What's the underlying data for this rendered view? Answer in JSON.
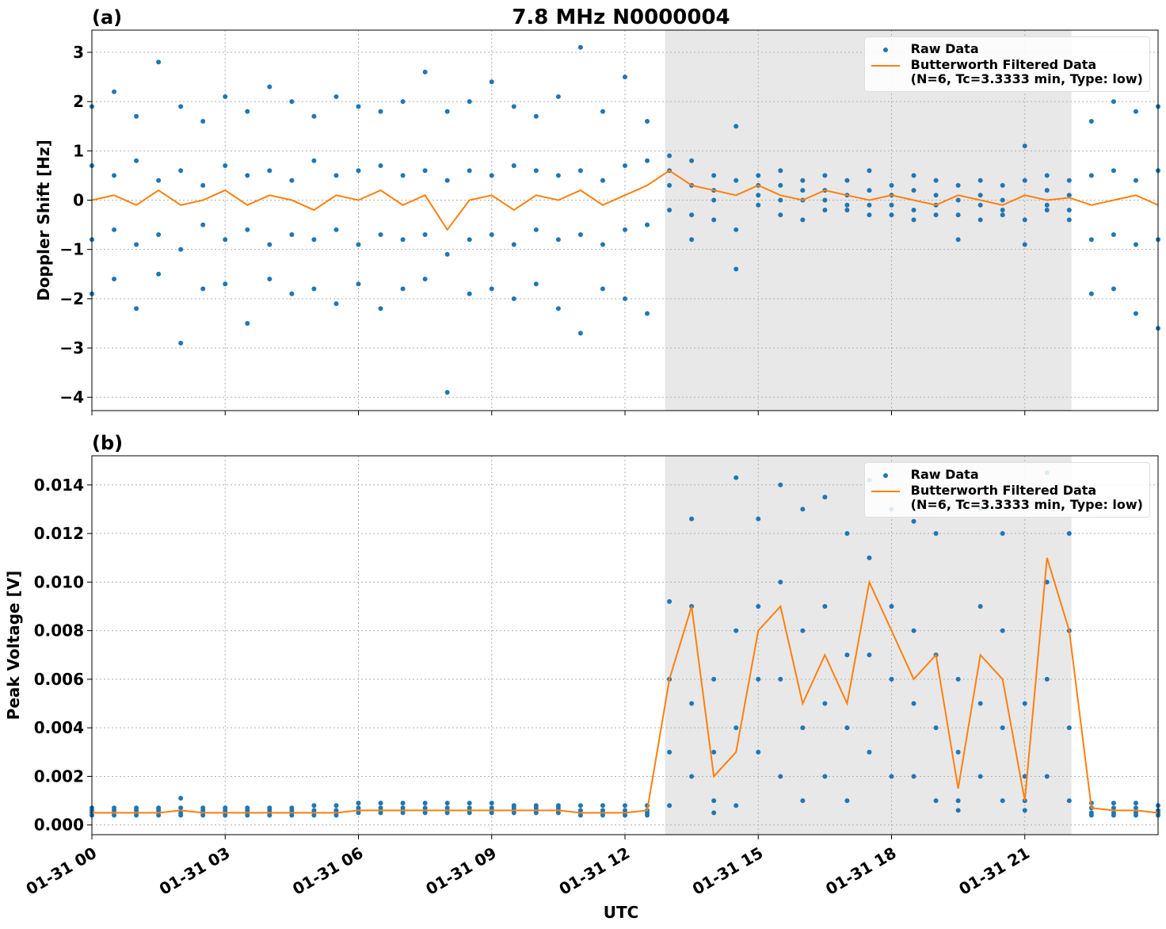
{
  "chart_data": [
    {
      "type": "scatter-line",
      "title": "7.8 MHz N0000004",
      "panel_label": "(a)",
      "ylabel": "Doppler Shift [Hz]",
      "xlim": [
        0,
        24
      ],
      "xticks": [
        0,
        3,
        6,
        9,
        12,
        15,
        18,
        21
      ],
      "ylim": [
        -4.27,
        3.45
      ],
      "yticks": [
        {
          "value": -4,
          "label": "−4"
        },
        {
          "value": -3,
          "label": "−3"
        },
        {
          "value": -2,
          "label": "−2"
        },
        {
          "value": -1,
          "label": "−1"
        },
        0,
        1,
        2,
        3
      ],
      "grid": true,
      "legend": "upper right",
      "shade": [
        12.9,
        22.05
      ],
      "shade_color": "#e8e8e8",
      "x": [
        0,
        0.5,
        1,
        1.5,
        2,
        2.5,
        3,
        3.5,
        4,
        4.5,
        5,
        5.5,
        6,
        6.5,
        7,
        7.5,
        8,
        8.5,
        9,
        9.5,
        10,
        10.5,
        11,
        11.5,
        12,
        12.5,
        13,
        13.5,
        14,
        14.5,
        15,
        15.5,
        16,
        16.5,
        17,
        17.5,
        18,
        18.5,
        19,
        19.5,
        20,
        20.5,
        21,
        21.5,
        22,
        22.5,
        23,
        23.5,
        24
      ],
      "series": [
        {
          "name": "Raw Data",
          "kind": "scatter",
          "color": "#1f77b4",
          "values": [
            [
              1.9,
              0.7,
              -0.8,
              -1.9
            ],
            [
              2.2,
              0.5,
              -0.6,
              -1.6
            ],
            [
              1.7,
              0.8,
              -0.9,
              -2.2
            ],
            [
              2.8,
              0.4,
              -0.7,
              -1.5
            ],
            [
              1.9,
              0.6,
              -1.0,
              -2.9
            ],
            [
              1.6,
              0.3,
              -0.5,
              -1.8
            ],
            [
              2.1,
              0.7,
              -0.8,
              -1.7
            ],
            [
              1.8,
              0.5,
              -0.6,
              -2.5
            ],
            [
              2.3,
              0.6,
              -0.9,
              -1.6
            ],
            [
              2.0,
              0.4,
              -0.7,
              -1.9
            ],
            [
              1.7,
              0.8,
              -0.8,
              -1.8
            ],
            [
              2.1,
              0.5,
              -0.6,
              -2.1
            ],
            [
              1.9,
              0.6,
              -0.9,
              -1.7
            ],
            [
              1.8,
              0.7,
              -0.7,
              -2.2
            ],
            [
              2.0,
              0.5,
              -0.8,
              -1.8
            ],
            [
              2.6,
              0.6,
              -0.7,
              -1.6
            ],
            [
              1.8,
              0.4,
              -1.1,
              -3.9
            ],
            [
              2.0,
              0.6,
              -0.8,
              -1.9
            ],
            [
              2.4,
              0.5,
              -0.7,
              -1.8
            ],
            [
              1.9,
              0.7,
              -0.9,
              -2.0
            ],
            [
              1.7,
              0.6,
              -0.6,
              -1.7
            ],
            [
              2.1,
              0.5,
              -0.8,
              -2.2
            ],
            [
              3.1,
              0.6,
              -0.7,
              -2.7
            ],
            [
              1.8,
              0.4,
              -0.9,
              -1.8
            ],
            [
              2.5,
              0.7,
              -0.6,
              -2.0
            ],
            [
              1.6,
              0.8,
              -0.5,
              -2.3
            ],
            [
              0.9,
              0.6,
              0.3,
              -0.2
            ],
            [
              0.8,
              0.3,
              -0.3,
              -0.8
            ],
            [
              0.5,
              0.2,
              0.0,
              -0.4
            ],
            [
              1.5,
              0.4,
              -0.6,
              -1.4
            ],
            [
              0.5,
              0.3,
              0.1,
              -0.1
            ],
            [
              0.6,
              0.3,
              0.0,
              -0.3
            ],
            [
              0.4,
              0.2,
              0.0,
              -0.4
            ],
            [
              0.5,
              0.2,
              0.0,
              -0.2
            ],
            [
              0.4,
              0.1,
              -0.1,
              -0.2
            ],
            [
              0.6,
              0.2,
              -0.1,
              -0.3
            ],
            [
              0.3,
              0.1,
              -0.1,
              -0.3
            ],
            [
              0.5,
              0.2,
              -0.2,
              -0.4
            ],
            [
              0.4,
              0.1,
              -0.1,
              -0.3
            ],
            [
              0.3,
              0.0,
              -0.3,
              -0.8
            ],
            [
              0.4,
              0.1,
              -0.1,
              -0.4
            ],
            [
              0.3,
              0.0,
              -0.2,
              -0.3
            ],
            [
              1.1,
              0.4,
              -0.4,
              -0.9
            ],
            [
              0.5,
              0.2,
              -0.1,
              -0.2
            ],
            [
              0.4,
              0.1,
              -0.2,
              -0.4
            ],
            [
              1.6,
              0.5,
              -0.8,
              -1.9
            ],
            [
              2.0,
              0.6,
              -0.7,
              -1.8
            ],
            [
              1.8,
              0.4,
              -0.9,
              -2.3
            ],
            [
              1.9,
              0.6,
              -0.8,
              -2.6
            ]
          ]
        },
        {
          "name": "Butterworth Filtered Data\n(N=6, Tc=3.3333 min, Type: low)",
          "kind": "line",
          "color": "#ff7f0e",
          "values": [
            0.0,
            0.1,
            -0.1,
            0.2,
            -0.1,
            0.0,
            0.2,
            -0.1,
            0.1,
            0.0,
            -0.2,
            0.1,
            0.0,
            0.2,
            -0.1,
            0.1,
            -0.6,
            0.0,
            0.1,
            -0.2,
            0.1,
            0.0,
            0.2,
            -0.1,
            0.1,
            0.3,
            0.6,
            0.3,
            0.2,
            0.1,
            0.3,
            0.1,
            0.0,
            0.2,
            0.1,
            0.0,
            0.1,
            0.0,
            -0.1,
            0.1,
            0.0,
            -0.1,
            0.1,
            0.0,
            0.05,
            -0.1,
            0.0,
            0.1,
            -0.1
          ]
        }
      ]
    },
    {
      "type": "scatter-line",
      "panel_label": "(b)",
      "ylabel": "Peak Voltage [V]",
      "xlabel": "UTC",
      "xlim": [
        0,
        24
      ],
      "xticks": [
        {
          "value": 0,
          "label": "01-31 00"
        },
        {
          "value": 3,
          "label": "01-31 03"
        },
        {
          "value": 6,
          "label": "01-31 06"
        },
        {
          "value": 9,
          "label": "01-31 09"
        },
        {
          "value": 12,
          "label": "01-31 12"
        },
        {
          "value": 15,
          "label": "01-31 15"
        },
        {
          "value": 18,
          "label": "01-31 18"
        },
        {
          "value": 21,
          "label": "01-31 21"
        }
      ],
      "ylim": [
        -0.0004,
        0.0152
      ],
      "yticks": [
        {
          "value": 0,
          "label": "0.000"
        },
        {
          "value": 0.002,
          "label": "0.002"
        },
        {
          "value": 0.004,
          "label": "0.004"
        },
        {
          "value": 0.006,
          "label": "0.006"
        },
        {
          "value": 0.008,
          "label": "0.008"
        },
        {
          "value": 0.01,
          "label": "0.010"
        },
        {
          "value": 0.012,
          "label": "0.012"
        },
        {
          "value": 0.014,
          "label": "0.014"
        }
      ],
      "grid": true,
      "legend": "upper right",
      "shade": [
        12.9,
        22.05
      ],
      "shade_color": "#e8e8e8",
      "x": [
        0,
        0.5,
        1,
        1.5,
        2,
        2.5,
        3,
        3.5,
        4,
        4.5,
        5,
        5.5,
        6,
        6.5,
        7,
        7.5,
        8,
        8.5,
        9,
        9.5,
        10,
        10.5,
        11,
        11.5,
        12,
        12.5,
        13,
        13.5,
        14,
        14.5,
        15,
        15.5,
        16,
        16.5,
        17,
        17.5,
        18,
        18.5,
        19,
        19.5,
        20,
        20.5,
        21,
        21.5,
        22,
        22.5,
        23,
        23.5,
        24
      ],
      "series": [
        {
          "name": "Raw Data",
          "kind": "scatter",
          "color": "#1f77b4",
          "values": [
            [
              0.0007,
              0.0006,
              0.0005,
              0.0004
            ],
            [
              0.0007,
              0.0006,
              0.0005,
              0.0004
            ],
            [
              0.0007,
              0.0006,
              0.0005,
              0.0004
            ],
            [
              0.0007,
              0.0006,
              0.0005,
              0.0004
            ],
            [
              0.0011,
              0.0007,
              0.0005,
              0.0004
            ],
            [
              0.0007,
              0.0006,
              0.0005,
              0.0004
            ],
            [
              0.0007,
              0.0006,
              0.0005,
              0.0004
            ],
            [
              0.0007,
              0.0006,
              0.0005,
              0.0004
            ],
            [
              0.0007,
              0.0006,
              0.0005,
              0.0004
            ],
            [
              0.0007,
              0.0006,
              0.0005,
              0.0004
            ],
            [
              0.0008,
              0.0006,
              0.0005,
              0.0004
            ],
            [
              0.0008,
              0.0006,
              0.0005,
              0.0004
            ],
            [
              0.0009,
              0.0007,
              0.0006,
              0.0005
            ],
            [
              0.0009,
              0.0007,
              0.0006,
              0.0005
            ],
            [
              0.0009,
              0.0007,
              0.0006,
              0.0005
            ],
            [
              0.0009,
              0.0007,
              0.0006,
              0.0005
            ],
            [
              0.0009,
              0.0007,
              0.0006,
              0.0005
            ],
            [
              0.0009,
              0.0007,
              0.0006,
              0.0005
            ],
            [
              0.0009,
              0.0007,
              0.0006,
              0.0005
            ],
            [
              0.0008,
              0.0007,
              0.0006,
              0.0005
            ],
            [
              0.0008,
              0.0007,
              0.0006,
              0.0005
            ],
            [
              0.0008,
              0.0007,
              0.0006,
              0.0005
            ],
            [
              0.0008,
              0.0006,
              0.0005,
              0.0004
            ],
            [
              0.0008,
              0.0006,
              0.0005,
              0.0004
            ],
            [
              0.0008,
              0.0006,
              0.0005,
              0.0004
            ],
            [
              0.0008,
              0.0006,
              0.0005,
              0.0004
            ],
            [
              0.0092,
              0.006,
              0.003,
              0.0008
            ],
            [
              0.0126,
              0.009,
              0.005,
              0.002
            ],
            [
              0.006,
              0.003,
              0.001,
              0.0005
            ],
            [
              0.0143,
              0.008,
              0.004,
              0.0008
            ],
            [
              0.0126,
              0.009,
              0.006,
              0.003
            ],
            [
              0.014,
              0.01,
              0.006,
              0.002
            ],
            [
              0.013,
              0.008,
              0.004,
              0.001
            ],
            [
              0.0135,
              0.009,
              0.005,
              0.002
            ],
            [
              0.012,
              0.007,
              0.004,
              0.001
            ],
            [
              0.0142,
              0.011,
              0.007,
              0.003
            ],
            [
              0.013,
              0.009,
              0.006,
              0.002
            ],
            [
              0.0125,
              0.008,
              0.005,
              0.002
            ],
            [
              0.012,
              0.007,
              0.004,
              0.001
            ],
            [
              0.006,
              0.003,
              0.001,
              0.0006
            ],
            [
              0.013,
              0.009,
              0.005,
              0.002
            ],
            [
              0.012,
              0.008,
              0.004,
              0.001
            ],
            [
              0.005,
              0.002,
              0.001,
              0.0006
            ],
            [
              0.0145,
              0.01,
              0.006,
              0.002
            ],
            [
              0.012,
              0.008,
              0.004,
              0.001
            ],
            [
              0.0009,
              0.0007,
              0.0005,
              0.0004
            ],
            [
              0.0009,
              0.0007,
              0.0005,
              0.0004
            ],
            [
              0.0009,
              0.0007,
              0.0005,
              0.0004
            ],
            [
              0.0008,
              0.0006,
              0.0005,
              0.0004
            ]
          ]
        },
        {
          "name": "Butterworth Filtered Data\n(N=6, Tc=3.3333 min, Type: low)",
          "kind": "line",
          "color": "#ff7f0e",
          "values": [
            0.0005,
            0.0005,
            0.0005,
            0.0005,
            0.0006,
            0.0005,
            0.0005,
            0.0005,
            0.0005,
            0.0005,
            0.0005,
            0.0005,
            0.0006,
            0.0006,
            0.0006,
            0.0006,
            0.0006,
            0.0006,
            0.0006,
            0.0006,
            0.0006,
            0.0006,
            0.0005,
            0.0005,
            0.0005,
            0.0006,
            0.006,
            0.009,
            0.002,
            0.003,
            0.008,
            0.009,
            0.005,
            0.007,
            0.005,
            0.01,
            0.008,
            0.006,
            0.007,
            0.0015,
            0.007,
            0.006,
            0.001,
            0.011,
            0.008,
            0.0007,
            0.0006,
            0.0006,
            0.0005
          ]
        }
      ]
    }
  ]
}
